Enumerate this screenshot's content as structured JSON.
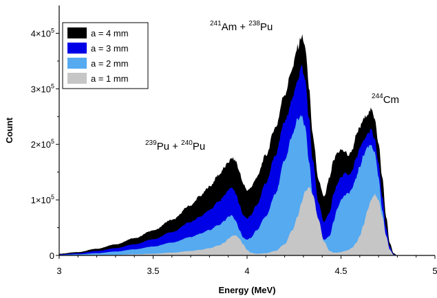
{
  "chart_data": {
    "type": "area",
    "xlabel": "Energy (MeV)",
    "ylabel": "Count",
    "xlim": [
      3,
      5
    ],
    "ylim": [
      0,
      450000
    ],
    "x_ticks": [
      3,
      3.5,
      4,
      4.5,
      5
    ],
    "x_tick_labels": [
      "3",
      "3.5",
      "4",
      "4.5",
      "5"
    ],
    "y_ticks": [
      0,
      100000,
      200000,
      300000,
      400000
    ],
    "y_tick_labels": [
      {
        "mant": "0",
        "exp": ""
      },
      {
        "mant": "1×10",
        "exp": "5"
      },
      {
        "mant": "2×10",
        "exp": "5"
      },
      {
        "mant": "3×10",
        "exp": "5"
      },
      {
        "mant": "4×10",
        "exp": "5"
      }
    ],
    "legend_position": "top-left",
    "grid": false,
    "x": [
      3.0,
      3.1,
      3.2,
      3.3,
      3.4,
      3.5,
      3.6,
      3.7,
      3.75,
      3.8,
      3.85,
      3.88,
      3.9,
      3.92,
      3.94,
      3.96,
      3.98,
      4.0,
      4.02,
      4.05,
      4.1,
      4.15,
      4.2,
      4.24,
      4.27,
      4.29,
      4.31,
      4.33,
      4.35,
      4.38,
      4.41,
      4.44,
      4.46,
      4.48,
      4.5,
      4.52,
      4.54,
      4.56,
      4.58,
      4.6,
      4.62,
      4.64,
      4.66,
      4.68,
      4.7,
      4.72,
      4.74,
      4.76,
      4.78,
      4.8
    ],
    "series": [
      {
        "name": "a = 4 mm",
        "color": "#000000",
        "values": [
          3000,
          6000,
          12000,
          20000,
          31000,
          45000,
          64000,
          90000,
          107000,
          124000,
          145000,
          158000,
          168000,
          175000,
          170000,
          150000,
          128000,
          117000,
          122000,
          140000,
          180000,
          230000,
          290000,
          335000,
          375000,
          395000,
          375000,
          300000,
          215000,
          135000,
          105000,
          140000,
          170000,
          185000,
          190000,
          187000,
          180000,
          190000,
          215000,
          230000,
          245000,
          255000,
          262000,
          248000,
          200000,
          140000,
          70000,
          22000,
          4000,
          0
        ]
      },
      {
        "name": "a = 3 mm",
        "color": "#0000e6",
        "values": [
          2000,
          4000,
          8000,
          13000,
          20000,
          29000,
          42000,
          60000,
          70000,
          82000,
          97000,
          108000,
          118000,
          122000,
          112000,
          90000,
          72000,
          66000,
          72000,
          90000,
          130000,
          180000,
          240000,
          280000,
          318000,
          340000,
          315000,
          245000,
          170000,
          95000,
          60000,
          78000,
          110000,
          128000,
          140000,
          148000,
          145000,
          152000,
          175000,
          192000,
          205000,
          218000,
          226000,
          208000,
          165000,
          105000,
          50000,
          15000,
          2000,
          0
        ]
      },
      {
        "name": "a = 2 mm",
        "color": "#55aaf0",
        "values": [
          1000,
          2000,
          4000,
          7000,
          11000,
          16000,
          23000,
          33000,
          39000,
          46000,
          55000,
          62000,
          70000,
          72000,
          62000,
          45000,
          32000,
          28000,
          32000,
          45000,
          70000,
          110000,
          170000,
          215000,
          245000,
          250000,
          230000,
          170000,
          105000,
          50000,
          28000,
          35000,
          60000,
          85000,
          100000,
          108000,
          112000,
          120000,
          140000,
          160000,
          180000,
          195000,
          200000,
          185000,
          140000,
          80000,
          35000,
          10000,
          1000,
          0
        ]
      },
      {
        "name": "a = 1 mm",
        "color": "#c6c6c6",
        "values": [
          0,
          0,
          1000,
          1000,
          2000,
          3000,
          5000,
          8000,
          10000,
          13000,
          18000,
          23000,
          30000,
          35000,
          36000,
          30000,
          20000,
          10000,
          5000,
          3000,
          4000,
          8000,
          20000,
          45000,
          70000,
          95000,
          115000,
          123000,
          110000,
          65000,
          25000,
          8000,
          5000,
          5000,
          6000,
          8000,
          10000,
          14000,
          22000,
          35000,
          55000,
          80000,
          100000,
          110000,
          100000,
          70000,
          35000,
          10000,
          1000,
          0
        ]
      }
    ],
    "annotations": [
      {
        "id": "pu",
        "iso1": "239",
        "el1": "Pu + ",
        "iso2": "240",
        "el2": "Pu"
      },
      {
        "id": "am",
        "iso1": "241",
        "el1": "Am + ",
        "iso2": "238",
        "el2": "Pu"
      },
      {
        "id": "cm",
        "iso1": "244",
        "el1": "Cm",
        "iso2": "",
        "el2": ""
      }
    ]
  }
}
